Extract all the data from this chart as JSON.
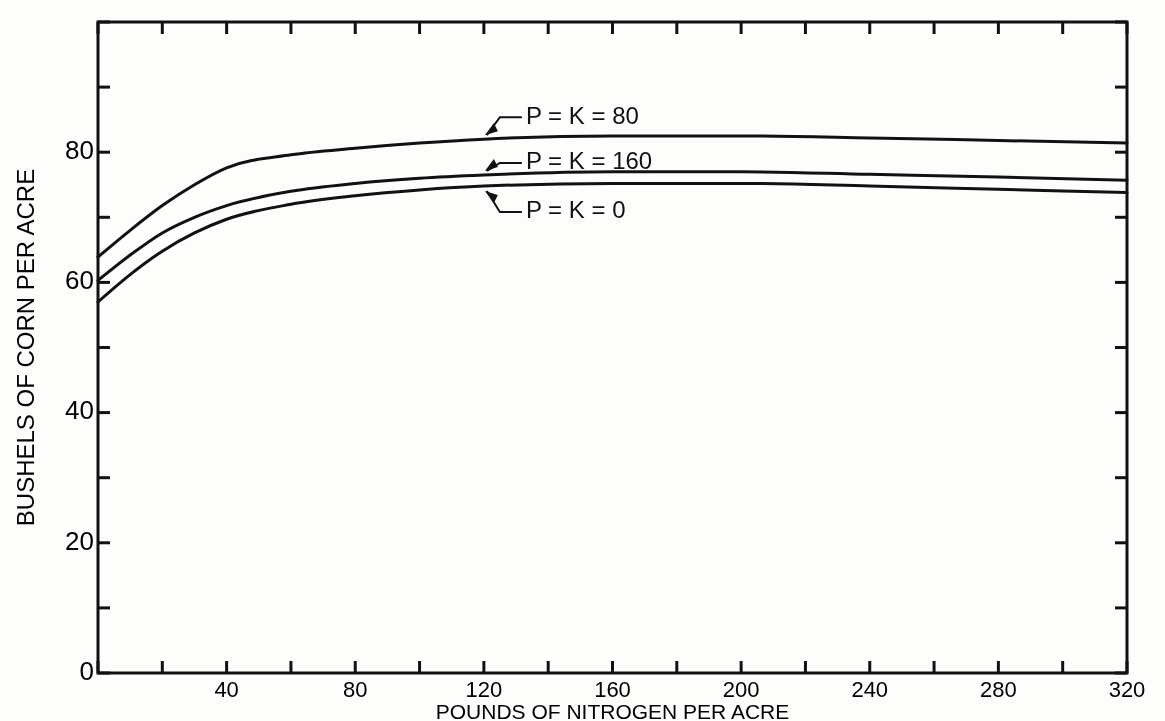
{
  "chart_data": {
    "type": "line",
    "xlabel": "POUNDS OF NITROGEN PER ACRE",
    "ylabel": "BUSHELS OF CORN PER ACRE",
    "x": [
      0,
      10,
      20,
      30,
      40,
      60,
      80,
      100,
      120,
      160,
      200,
      240,
      280,
      320
    ],
    "series": [
      {
        "name": "P = K = 80",
        "color": "#111111",
        "values": [
          63.9,
          68,
          71.8,
          75,
          77.6,
          79.6,
          80.6,
          81.4,
          82,
          82.5,
          82.5,
          82.2,
          81.8,
          81.4
        ]
      },
      {
        "name": "P = K = 160",
        "color": "#111111",
        "values": [
          60.3,
          64.2,
          67.6,
          70,
          71.8,
          74,
          75.2,
          76,
          76.5,
          77,
          77,
          76.6,
          76.2,
          75.7
        ]
      },
      {
        "name": "P = K = 0",
        "color": "#111111",
        "values": [
          57,
          61.2,
          64.8,
          67.6,
          69.7,
          72,
          73.3,
          74.2,
          74.8,
          75.2,
          75.2,
          74.8,
          74.3,
          73.8
        ]
      }
    ],
    "xlim": [
      0,
      320
    ],
    "ylim": [
      0,
      100
    ],
    "xticks": [
      {
        "value": 0,
        "label": null
      },
      {
        "value": 20,
        "label": null
      },
      40,
      {
        "value": 60,
        "label": null
      },
      80,
      {
        "value": 100,
        "label": null
      },
      120,
      {
        "value": 140,
        "label": null
      },
      160,
      {
        "value": 180,
        "label": null
      },
      200,
      {
        "value": 220,
        "label": null
      },
      240,
      {
        "value": 260,
        "label": null
      },
      280,
      {
        "value": 300,
        "label": null
      },
      320
    ],
    "yticks": [
      0,
      {
        "value": 10,
        "label": null
      },
      20,
      {
        "value": 30,
        "label": null
      },
      40,
      {
        "value": 50,
        "label": null
      },
      60,
      {
        "value": 70,
        "label": null
      },
      80,
      {
        "value": 90,
        "label": null
      },
      {
        "value": 100,
        "label": null
      }
    ],
    "grid": false,
    "legend": "top right",
    "marker": "none",
    "line_style": "solid"
  }
}
